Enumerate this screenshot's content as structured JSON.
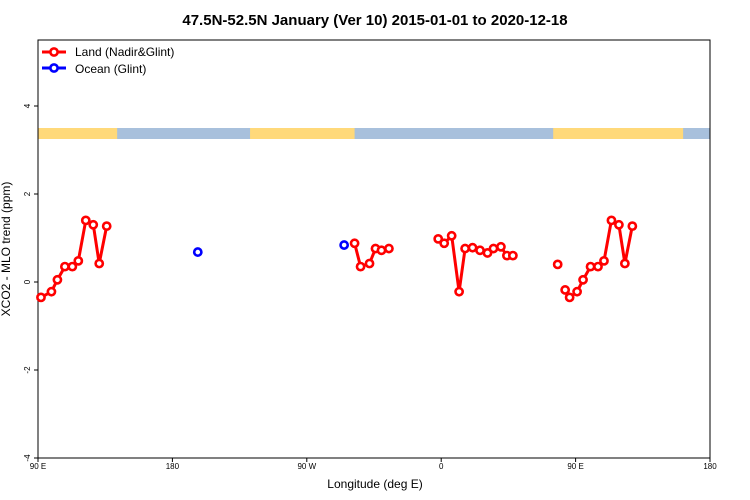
{
  "chart_data": {
    "type": "line",
    "title": "47.5N-52.5N January (Ver 10)   2015-01-01 to 2020-12-18",
    "xlabel": "Longitude (deg E)",
    "ylabel": "XCO2 - MLO trend (ppm)",
    "xlim": [
      90,
      540
    ],
    "ylim": [
      -4,
      5.5
    ],
    "x_ticks": [
      {
        "value": 90,
        "label": "90 E"
      },
      {
        "value": 180,
        "label": "180"
      },
      {
        "value": 270,
        "label": "90 W"
      },
      {
        "value": 360,
        "label": "0"
      },
      {
        "value": 450,
        "label": "90 E"
      },
      {
        "value": 540,
        "label": "180"
      }
    ],
    "y_ticks": [
      -4,
      -2,
      0,
      2,
      4
    ],
    "grid": false,
    "legend_position": "top-left",
    "land_ocean_strip": {
      "y_range": [
        3.25,
        3.5
      ],
      "land_color": "#FFD97A",
      "ocean_color": "#A8C0DC",
      "land_intervals": [
        [
          90,
          143
        ],
        [
          232,
          302
        ],
        [
          435,
          522
        ]
      ]
    },
    "series": [
      {
        "name": "Land (Nadir&Glint)",
        "color": "#FF0000",
        "segments": [
          [
            [
              92,
              -0.35
            ],
            [
              99,
              -0.22
            ],
            [
              103,
              0.05
            ],
            [
              108,
              0.35
            ],
            [
              113,
              0.35
            ],
            [
              117,
              0.48
            ],
            [
              122,
              1.4
            ],
            [
              127,
              1.3
            ],
            [
              131,
              0.42
            ],
            [
              136,
              1.27
            ]
          ],
          [
            [
              302,
              0.88
            ],
            [
              306,
              0.35
            ],
            [
              312,
              0.42
            ],
            [
              316,
              0.76
            ],
            [
              320,
              0.72
            ],
            [
              325,
              0.76
            ]
          ],
          [
            [
              358,
              0.98
            ],
            [
              362,
              0.88
            ],
            [
              367,
              1.05
            ],
            [
              372,
              -0.22
            ],
            [
              376,
              0.76
            ],
            [
              381,
              0.78
            ],
            [
              386,
              0.72
            ],
            [
              391,
              0.66
            ],
            [
              395,
              0.76
            ],
            [
              400,
              0.8
            ],
            [
              404,
              0.6
            ],
            [
              408,
              0.6
            ]
          ]
        ],
        "points": [
          [
            438,
            0.4
          ],
          [
            443,
            -0.18
          ],
          [
            446,
            -0.35
          ],
          [
            451,
            -0.22
          ],
          [
            455,
            0.05
          ],
          [
            460,
            0.35
          ],
          [
            465,
            0.35
          ],
          [
            469,
            0.48
          ],
          [
            474,
            1.4
          ],
          [
            479,
            1.3
          ],
          [
            483,
            0.42
          ],
          [
            488,
            1.27
          ]
        ],
        "segments_extra": [
          [
            [
              443,
              -0.18
            ],
            [
              446,
              -0.35
            ],
            [
              451,
              -0.22
            ],
            [
              455,
              0.05
            ],
            [
              460,
              0.35
            ],
            [
              465,
              0.35
            ],
            [
              469,
              0.48
            ],
            [
              474,
              1.4
            ],
            [
              479,
              1.3
            ],
            [
              483,
              0.42
            ],
            [
              488,
              1.27
            ]
          ]
        ]
      },
      {
        "name": "Ocean (Glint)",
        "color": "#0000FF",
        "points": [
          [
            197,
            0.68
          ],
          [
            295,
            0.84
          ]
        ]
      }
    ]
  }
}
